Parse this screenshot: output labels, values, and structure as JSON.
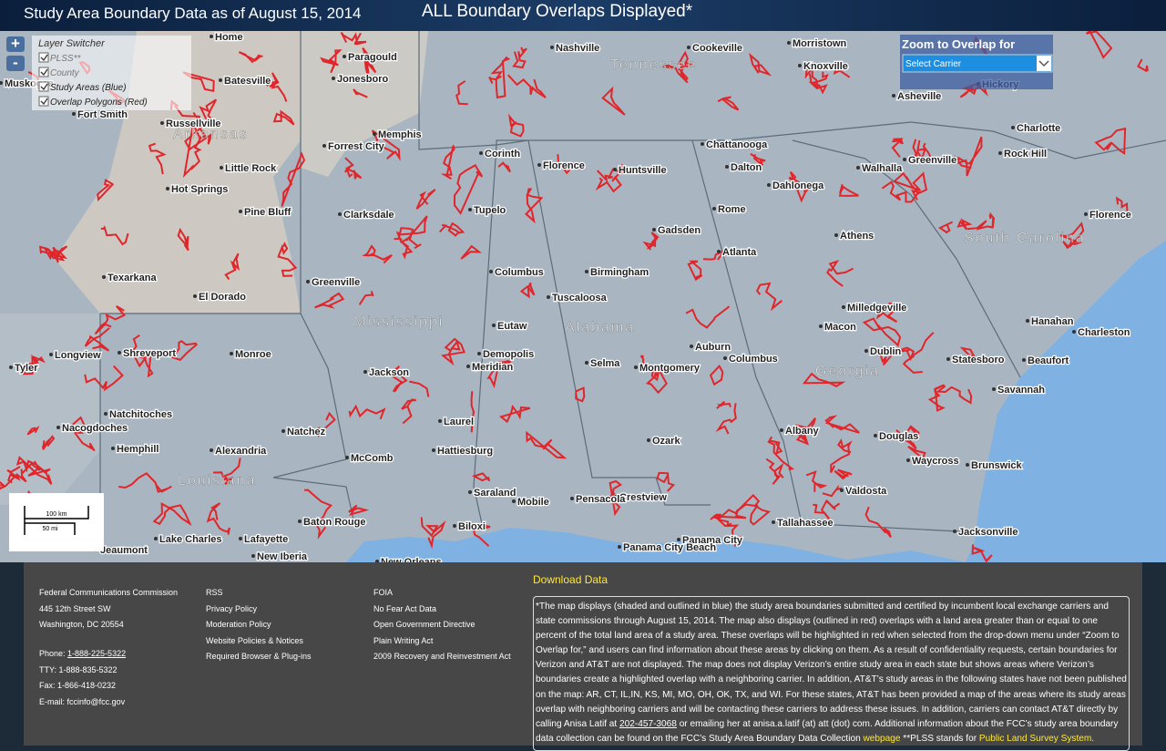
{
  "header": {
    "left_title": "Study Area Boundary Data as of August 15, 2014",
    "center_title": "ALL Boundary Overlaps Displayed*"
  },
  "zoom_controls": {
    "zoom_in": "+",
    "zoom_out": "-"
  },
  "layer_switcher": {
    "title": "Layer Switcher",
    "layers": [
      "PLSS**",
      "County",
      "Study Areas (Blue)",
      "Overlap Polygons (Red)"
    ]
  },
  "zoom_to_overlap": {
    "title": "Zoom to Overlap for",
    "select": "Select Carrier"
  },
  "scale": {
    "km": "100 km",
    "mi": "50 mi"
  },
  "state_labels": [
    "Arkansas",
    "Mississippi",
    "Alabama",
    "Georgia",
    "Louisiana",
    "South Carolina",
    "Tennessee"
  ],
  "city_labels": [
    "Nashville",
    "Cookeville",
    "Knoxville",
    "Morristown",
    "Asheville",
    "Hickory",
    "Charlotte",
    "Memphis",
    "Forrest City",
    "Jonesboro",
    "Paragould",
    "Batesville",
    "Home",
    "Russellville",
    "Fort Smith",
    "Little Rock",
    "Hot Springs",
    "Pine Bluff",
    "Clarksdale",
    "Corinth",
    "Tupelo",
    "Florence",
    "Huntsville",
    "Chattanooga",
    "Dalton",
    "Rome",
    "Dahlonega",
    "Walhalla",
    "Greenville",
    "Rock Hill",
    "Gadsden",
    "Atlanta",
    "Athens",
    "Birmingham",
    "Columbus",
    "Tuscaloosa",
    "Texarkana",
    "Greenville",
    "El Dorado",
    "Eutaw",
    "Demopolis",
    "Shreveport",
    "Monroe",
    "Jackson",
    "Meridian",
    "Selma",
    "Montgomery",
    "Auburn",
    "Columbus",
    "Macon",
    "Milledgeville",
    "Dublin",
    "Statesboro",
    "Savannah",
    "Charleston",
    "Beaufort",
    "Hanahan",
    "Florence",
    "Albany",
    "Douglas",
    "Waycross",
    "Brunswick",
    "Valdosta",
    "Tallahassee",
    "Jacksonville",
    "Ozark",
    "Crestview",
    "Pensacola",
    "Panama City",
    "Panama City Beach",
    "Mobile",
    "Biloxi",
    "Saraland",
    "Hattiesburg",
    "Laurel",
    "McComb",
    "Natchez",
    "Alexandria",
    "Natchitoches",
    "Nacogdoches",
    "Hemphill",
    "Longview",
    "Tyler",
    "Baton Rouge",
    "Lake Charles",
    "Lafayette",
    "New Iberia",
    "New Orleans",
    "Jeaumont",
    "Muskogee"
  ],
  "footer": {
    "col1": [
      "Federal Communications Commission",
      "445 12th Street SW",
      "Washington, DC 20554"
    ],
    "contacts": [
      {
        "label": "Phone: ",
        "value": "1-888-225-5322"
      },
      {
        "label": "TTY: 1-888-835-5322"
      },
      {
        "label": "Fax: 1-866-418-0232"
      },
      {
        "label": "E-mail: fccinfo@fcc.gov"
      }
    ],
    "col2": [
      "RSS",
      "Privacy Policy",
      "Moderation Policy",
      "Website Policies & Notices",
      "Required Browser & Plug-ins"
    ],
    "col3": [
      "FOIA",
      "No Fear Act Data",
      "Open Government Directive",
      "Plain Writing Act",
      "2009 Recovery and Reinvestment Act"
    ],
    "download": "Download Data",
    "description": [
      "*The map displays (shaded and outlined in blue) the study area boundaries submitted and certified by incumbent local exchange carriers and state commissions through August 15, 2014. The map also displays (outlined in red) overlaps with a land area greater than or equal to one percent of the total land area of a study area. These overlaps will be highlighted in red when selected from the drop-down menu under “Zoom to Overlap for,” and users can find information about these areas by clicking on them. As a result of confidentiality requests, certain boundaries for Verizon and AT&T are not displayed. The map does not display Verizon’s entire study area in each state but shows areas where Verizon’s boundaries create a highlighted overlap with a neighboring carrier. In addition, AT&T’s study areas in the following states have not been published on the map: AR, CT, IL,IN, KS, MI, MO, OH, OK, TX, and WI. For these states, AT&T has been provided a map of the areas where its study areas overlap with neighboring carriers and will be contacting these carriers to address these issues. In addition, carriers can contact AT&T directly by calling Anisa Latif at ",
      "202-457-3068",
      " or emailing her at anisa.a.latif (at) att (dot) com. Additional information about the FCC’s study area boundary data collection can be found on the FCC’s Study Area Boundary Data Collection ",
      "webpage",
      " **PLSS stands for ",
      "Public Land Survey System."
    ]
  }
}
